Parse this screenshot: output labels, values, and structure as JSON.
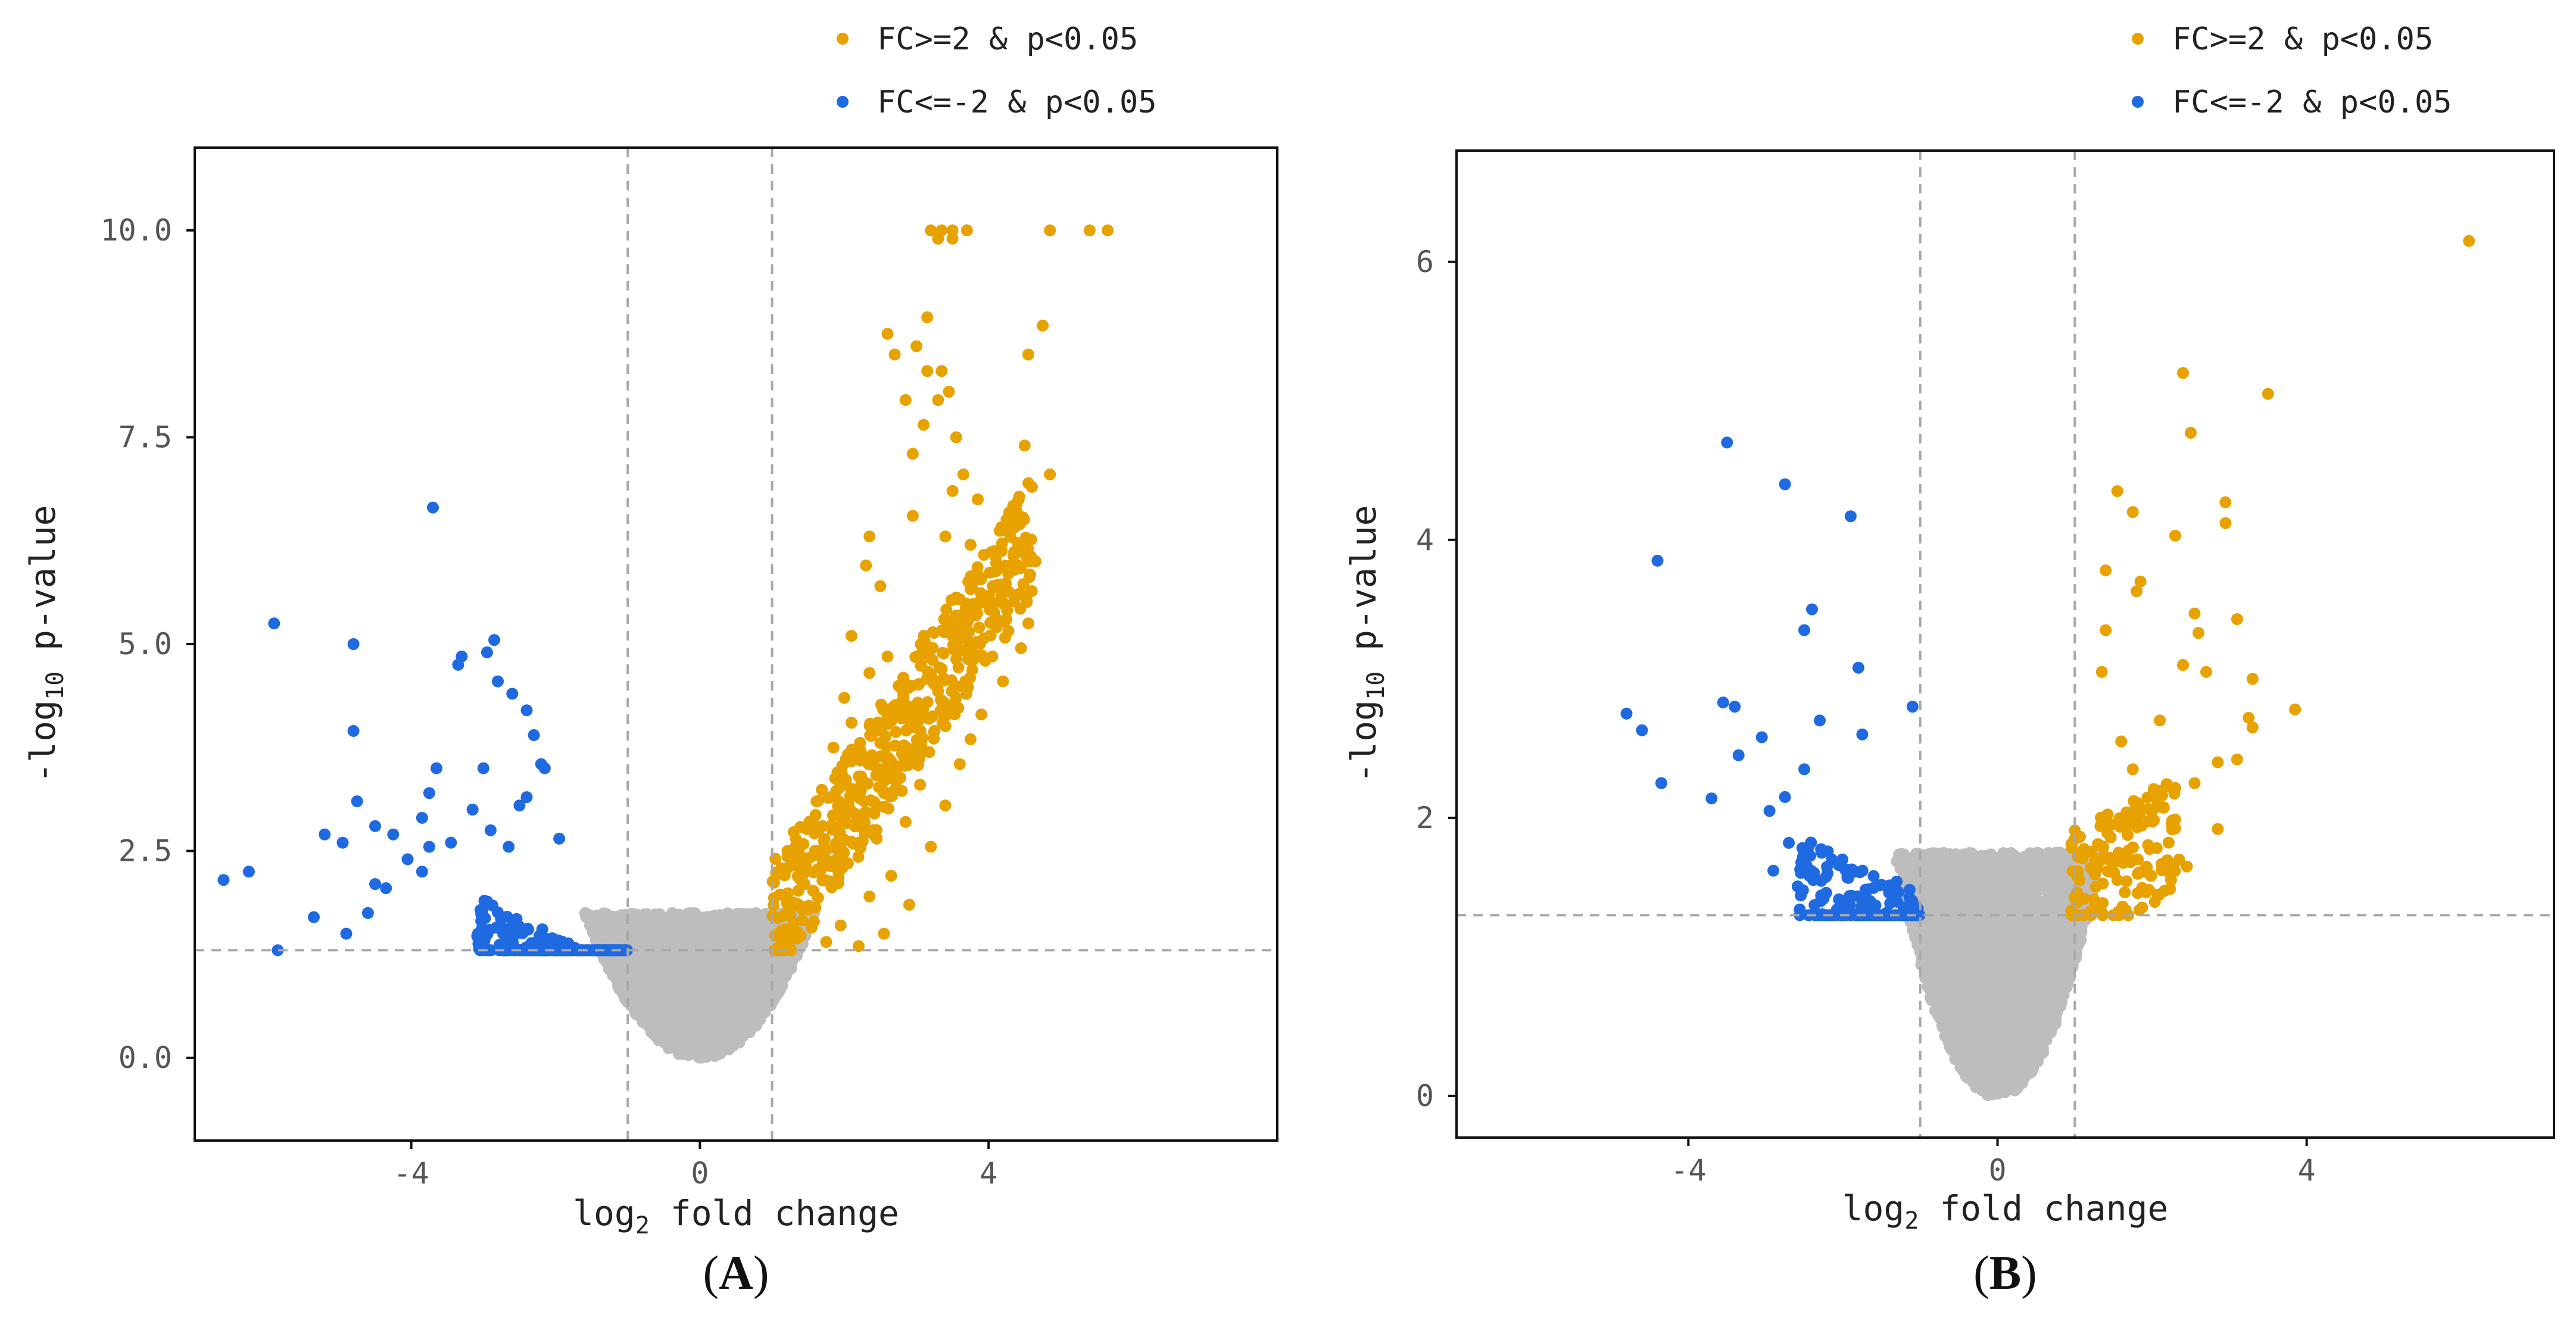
{
  "colors": {
    "up": "#E8A200",
    "down": "#1F6AE0",
    "ns": "#BDBDBD",
    "threshold_line": "#A8A8A8",
    "axis": "#111111",
    "tick_text": "#555555"
  },
  "chart_data": [
    {
      "type": "scatter",
      "panel_label": "A",
      "caption": {
        "open": "(",
        "letter": "A",
        "close": ")"
      },
      "xlabel": {
        "prefix": "log",
        "sub": "2",
        "suffix": " fold change"
      },
      "ylabel": {
        "prefix": "-log",
        "sub": "10",
        "suffix": " p-value"
      },
      "xlim": [
        -7.0,
        8.0
      ],
      "ylim": [
        -1.0,
        11.0
      ],
      "x_ticks": [
        -4,
        0,
        4
      ],
      "x_tick_labels": [
        "-4",
        "0",
        "4"
      ],
      "y_ticks": [
        0,
        2.5,
        5,
        7.5,
        10
      ],
      "y_tick_labels": [
        "0.0",
        "2.5",
        "5.0",
        "7.5",
        "10.0"
      ],
      "grid": false,
      "vlines": [
        -1,
        1
      ],
      "hline": 1.3,
      "legend_position": "top-right",
      "legend": [
        {
          "label": "FC>=2 & p<0.05",
          "color": "#E8A200"
        },
        {
          "label": "FC<=-2 & p<0.05",
          "color": "#1F6AE0"
        }
      ],
      "cloud": {
        "x_min": -3.6,
        "x_max": 2.4,
        "width_scale": 0.22,
        "count": 2600
      },
      "series": [
        {
          "name": "FC>=2 & p<0.05",
          "color": "#E8A200",
          "points": [
            [
              3.2,
              10
            ],
            [
              3.35,
              10
            ],
            [
              3.5,
              10
            ],
            [
              3.7,
              10
            ],
            [
              4.85,
              10
            ],
            [
              5.4,
              10
            ],
            [
              5.65,
              10
            ],
            [
              3.5,
              9.9
            ],
            [
              3.3,
              9.9
            ],
            [
              3.15,
              8.95
            ],
            [
              4.75,
              8.85
            ],
            [
              2.6,
              8.75
            ],
            [
              3.0,
              8.6
            ],
            [
              4.55,
              8.5
            ],
            [
              2.7,
              8.5
            ],
            [
              3.15,
              8.3
            ],
            [
              3.35,
              8.3
            ],
            [
              3.45,
              8.05
            ],
            [
              2.85,
              7.95
            ],
            [
              3.3,
              7.95
            ],
            [
              3.1,
              7.65
            ],
            [
              3.55,
              7.5
            ],
            [
              4.5,
              7.4
            ],
            [
              2.95,
              7.3
            ],
            [
              3.65,
              7.05
            ],
            [
              4.85,
              7.05
            ],
            [
              3.5,
              6.85
            ],
            [
              3.85,
              6.75
            ],
            [
              4.6,
              6.9
            ],
            [
              2.95,
              6.55
            ],
            [
              4.35,
              6.65
            ],
            [
              3.4,
              6.3
            ],
            [
              2.35,
              6.3
            ],
            [
              3.75,
              6.2
            ],
            [
              4.1,
              6.05
            ],
            [
              4.65,
              6.0
            ],
            [
              2.3,
              5.95
            ],
            [
              3.9,
              5.8
            ],
            [
              2.5,
              5.7
            ],
            [
              3.55,
              5.55
            ],
            [
              4.2,
              5.5
            ],
            [
              4.55,
              5.25
            ],
            [
              2.1,
              5.1
            ],
            [
              3.1,
              5.1
            ],
            [
              3.7,
              5.05
            ],
            [
              4.05,
              4.85
            ],
            [
              4.45,
              4.95
            ],
            [
              2.6,
              4.85
            ],
            [
              2.35,
              4.65
            ],
            [
              3.35,
              4.7
            ],
            [
              4.2,
              4.55
            ],
            [
              2.0,
              4.35
            ],
            [
              2.8,
              4.45
            ],
            [
              3.55,
              4.25
            ],
            [
              3.9,
              4.15
            ],
            [
              2.1,
              4.05
            ],
            [
              2.45,
              3.95
            ],
            [
              3.25,
              3.95
            ],
            [
              3.75,
              3.85
            ],
            [
              1.85,
              3.75
            ],
            [
              2.95,
              3.65
            ],
            [
              3.6,
              3.55
            ],
            [
              2.2,
              3.4
            ],
            [
              3.05,
              3.3
            ],
            [
              1.8,
              3.15
            ],
            [
              2.55,
              3.2
            ],
            [
              3.4,
              3.05
            ],
            [
              2.15,
              2.95
            ],
            [
              2.85,
              2.85
            ],
            [
              1.7,
              2.8
            ],
            [
              2.45,
              2.65
            ],
            [
              3.2,
              2.55
            ],
            [
              1.6,
              2.45
            ],
            [
              2.05,
              2.35
            ],
            [
              2.65,
              2.2
            ],
            [
              1.45,
              2.1
            ],
            [
              2.35,
              1.95
            ],
            [
              2.9,
              1.85
            ],
            [
              1.5,
              1.8
            ],
            [
              1.95,
              1.6
            ],
            [
              2.55,
              1.5
            ],
            [
              1.3,
              1.45
            ],
            [
              1.75,
              1.4
            ],
            [
              2.2,
              1.35
            ],
            [
              1.15,
              1.35
            ]
          ],
          "cluster": {
            "x_start": 1.0,
            "x_end": 4.6,
            "y_min": 1.3,
            "y_base": 1.45,
            "y_slope": 1.3,
            "spread": 1.5,
            "count": 520
          }
        },
        {
          "name": "FC<=-2 & p<0.05",
          "color": "#1F6AE0",
          "points": [
            [
              -3.7,
              6.65
            ],
            [
              -5.9,
              5.25
            ],
            [
              -4.8,
              5.0
            ],
            [
              -2.85,
              5.05
            ],
            [
              -3.3,
              4.85
            ],
            [
              -2.95,
              4.9
            ],
            [
              -3.35,
              4.75
            ],
            [
              -2.8,
              4.55
            ],
            [
              -2.4,
              4.2
            ],
            [
              -2.6,
              4.4
            ],
            [
              -4.8,
              3.95
            ],
            [
              -2.3,
              3.9
            ],
            [
              -2.2,
              3.55
            ],
            [
              -2.15,
              3.5
            ],
            [
              -3.0,
              3.5
            ],
            [
              -3.65,
              3.5
            ],
            [
              -3.75,
              3.2
            ],
            [
              -4.75,
              3.1
            ],
            [
              -2.5,
              3.05
            ],
            [
              -3.15,
              3.0
            ],
            [
              -2.4,
              3.15
            ],
            [
              -5.2,
              2.7
            ],
            [
              -4.95,
              2.6
            ],
            [
              -4.5,
              2.8
            ],
            [
              -4.25,
              2.7
            ],
            [
              -3.85,
              2.9
            ],
            [
              -4.05,
              2.4
            ],
            [
              -3.75,
              2.55
            ],
            [
              -2.9,
              2.75
            ],
            [
              -3.45,
              2.6
            ],
            [
              -2.65,
              2.55
            ],
            [
              -1.95,
              2.65
            ],
            [
              -6.6,
              2.15
            ],
            [
              -6.25,
              2.25
            ],
            [
              -5.35,
              1.7
            ],
            [
              -5.85,
              1.3
            ],
            [
              -4.9,
              1.5
            ],
            [
              -4.6,
              1.75
            ],
            [
              -4.35,
              2.05
            ],
            [
              -4.5,
              2.1
            ],
            [
              -3.85,
              2.25
            ]
          ],
          "cluster": {
            "x_start": -3.1,
            "x_end": -1.0,
            "y_min": 1.3,
            "y_base": 1.4,
            "y_slope": -0.45,
            "spread": 0.95,
            "count": 230
          }
        }
      ]
    },
    {
      "type": "scatter",
      "panel_label": "B",
      "caption": {
        "open": "(",
        "letter": "B",
        "close": ")"
      },
      "xlabel": {
        "prefix": "log",
        "sub": "2",
        "suffix": " fold change"
      },
      "ylabel": {
        "prefix": "-log",
        "sub": "10",
        "suffix": " p-value"
      },
      "xlim": [
        -7.0,
        7.2
      ],
      "ylim": [
        -0.3,
        6.8
      ],
      "x_ticks": [
        -4,
        0,
        4
      ],
      "x_tick_labels": [
        "-4",
        "0",
        "4"
      ],
      "y_ticks": [
        0,
        2,
        4,
        6
      ],
      "y_tick_labels": [
        "0",
        "2",
        "4",
        "6"
      ],
      "grid": false,
      "vlines": [
        -1,
        1
      ],
      "hline": 1.3,
      "legend_position": "top-right",
      "legend": [
        {
          "label": "FC>=2 & p<0.05",
          "color": "#E8A200"
        },
        {
          "label": "FC<=-2 & p<0.05",
          "color": "#1F6AE0"
        }
      ],
      "cloud": {
        "x_min": -2.5,
        "x_max": 2.2,
        "width_scale": 0.32,
        "count": 2600
      },
      "series": [
        {
          "name": "FC>=2 & p<0.05",
          "color": "#E8A200",
          "points": [
            [
              6.1,
              6.15
            ],
            [
              2.4,
              5.2
            ],
            [
              3.5,
              5.05
            ],
            [
              2.5,
              4.77
            ],
            [
              1.55,
              4.35
            ],
            [
              2.95,
              4.27
            ],
            [
              1.75,
              4.2
            ],
            [
              2.3,
              4.03
            ],
            [
              2.95,
              4.12
            ],
            [
              1.4,
              3.78
            ],
            [
              1.85,
              3.7
            ],
            [
              1.8,
              3.63
            ],
            [
              2.55,
              3.47
            ],
            [
              3.1,
              3.43
            ],
            [
              1.4,
              3.35
            ],
            [
              2.6,
              3.33
            ],
            [
              3.3,
              3.0
            ],
            [
              3.85,
              2.78
            ],
            [
              3.25,
              2.72
            ],
            [
              3.3,
              2.65
            ],
            [
              2.7,
              3.05
            ],
            [
              2.4,
              3.1
            ],
            [
              2.85,
              2.4
            ],
            [
              3.1,
              2.42
            ],
            [
              2.85,
              1.92
            ],
            [
              1.6,
              2.55
            ],
            [
              2.1,
              2.7
            ],
            [
              1.35,
              3.05
            ],
            [
              1.75,
              2.35
            ],
            [
              2.55,
              2.25
            ],
            [
              2.0,
              2.05
            ],
            [
              2.35,
              1.7
            ],
            [
              2.45,
              1.65
            ]
          ],
          "cluster": {
            "x_start": 0.95,
            "x_end": 2.3,
            "y_min": 1.3,
            "y_base": 1.4,
            "y_slope": 0.3,
            "spread": 0.85,
            "count": 150
          }
        },
        {
          "name": "FC<=-2 & p<0.05",
          "color": "#1F6AE0",
          "points": [
            [
              -3.5,
              4.7
            ],
            [
              -2.75,
              4.4
            ],
            [
              -1.9,
              4.17
            ],
            [
              -4.4,
              3.85
            ],
            [
              -2.4,
              3.5
            ],
            [
              -2.5,
              3.35
            ],
            [
              -1.8,
              3.08
            ],
            [
              -4.8,
              2.75
            ],
            [
              -4.6,
              2.63
            ],
            [
              -3.55,
              2.83
            ],
            [
              -3.4,
              2.8
            ],
            [
              -3.05,
              2.58
            ],
            [
              -2.3,
              2.7
            ],
            [
              -1.75,
              2.6
            ],
            [
              -1.1,
              2.8
            ],
            [
              -3.7,
              2.14
            ],
            [
              -4.35,
              2.25
            ],
            [
              -3.35,
              2.45
            ],
            [
              -2.5,
              2.35
            ],
            [
              -2.95,
              2.05
            ],
            [
              -2.7,
              1.82
            ],
            [
              -2.9,
              1.62
            ],
            [
              -2.75,
              2.15
            ],
            [
              -2.2,
              1.6
            ]
          ],
          "cluster": {
            "x_start": -2.6,
            "x_end": -1.0,
            "y_min": 1.3,
            "y_base": 1.45,
            "y_slope": -0.25,
            "spread": 0.7,
            "count": 170
          }
        }
      ]
    }
  ]
}
